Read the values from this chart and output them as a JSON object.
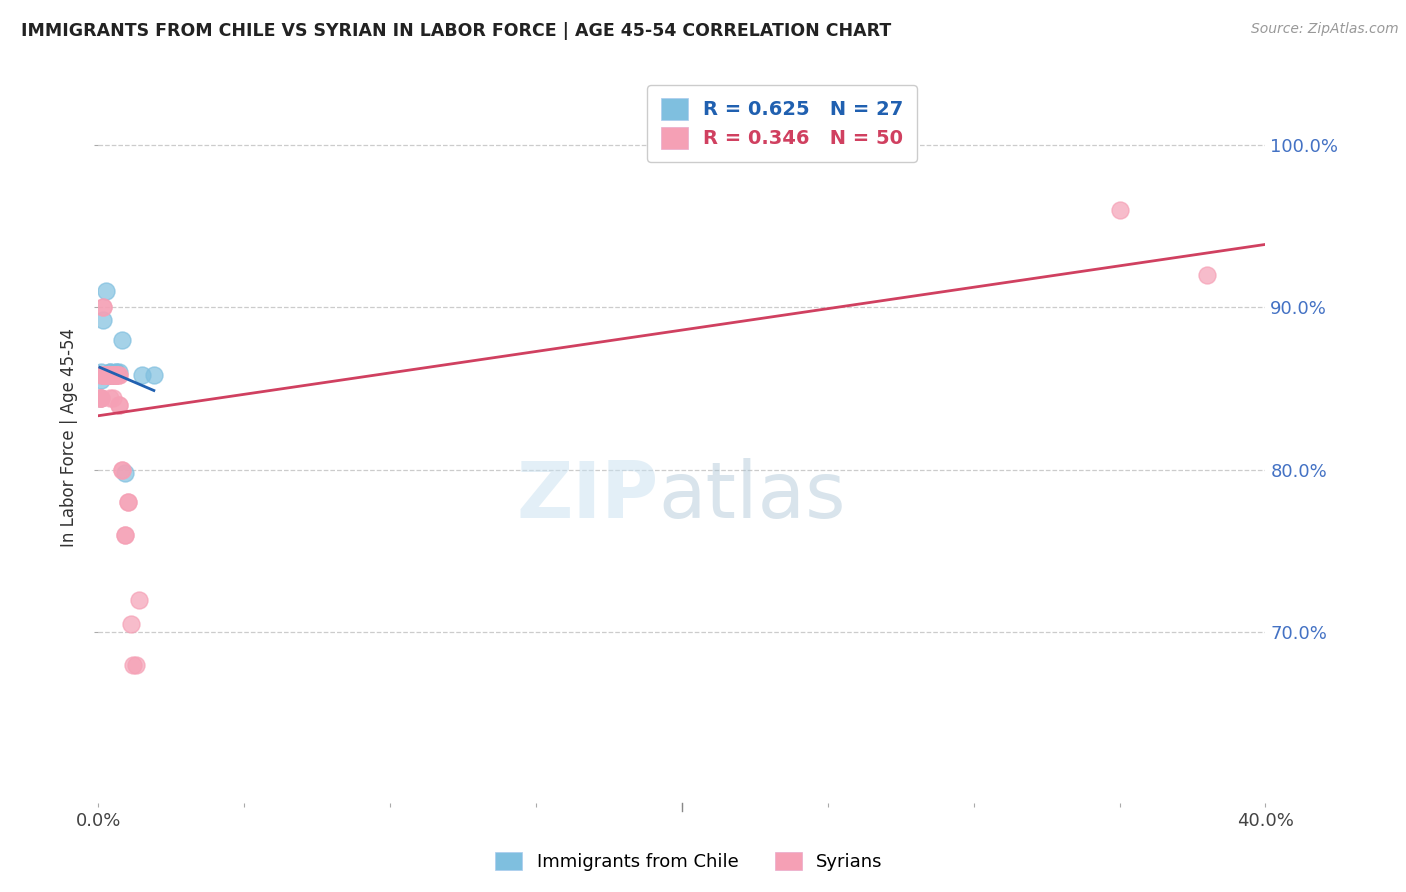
{
  "title": "IMMIGRANTS FROM CHILE VS SYRIAN IN LABOR FORCE | AGE 45-54 CORRELATION CHART",
  "source": "Source: ZipAtlas.com",
  "ylabel": "In Labor Force | Age 45-54",
  "ytick_labels": [
    "100.0%",
    "90.0%",
    "80.0%",
    "70.0%"
  ],
  "ytick_values": [
    1.0,
    0.9,
    0.8,
    0.7
  ],
  "xlim": [
    0.0,
    0.4
  ],
  "ylim": [
    0.595,
    1.045
  ],
  "chile_color": "#7fbfdf",
  "syrian_color": "#f5a0b5",
  "chile_line_color": "#2060b0",
  "syrian_line_color": "#d04060",
  "chile_R": 0.625,
  "chile_N": 27,
  "syrian_R": 0.346,
  "syrian_N": 50,
  "legend_label_chile": "Immigrants from Chile",
  "legend_label_syrian": "Syrians",
  "chile_x": [
    0.0005,
    0.001,
    0.001,
    0.0015,
    0.002,
    0.002,
    0.002,
    0.0025,
    0.003,
    0.003,
    0.003,
    0.003,
    0.0035,
    0.004,
    0.004,
    0.004,
    0.004,
    0.005,
    0.005,
    0.005,
    0.006,
    0.006,
    0.007,
    0.008,
    0.009,
    0.015,
    0.019
  ],
  "chile_y": [
    0.844,
    0.86,
    0.855,
    0.892,
    0.858,
    0.858,
    0.858,
    0.91,
    0.858,
    0.858,
    0.858,
    0.858,
    0.858,
    0.858,
    0.86,
    0.86,
    0.858,
    0.858,
    0.858,
    0.858,
    0.86,
    0.86,
    0.86,
    0.88,
    0.798,
    0.858,
    0.858
  ],
  "syrian_x": [
    0.0005,
    0.0005,
    0.001,
    0.001,
    0.001,
    0.001,
    0.0015,
    0.0015,
    0.002,
    0.002,
    0.002,
    0.002,
    0.002,
    0.002,
    0.003,
    0.003,
    0.003,
    0.003,
    0.003,
    0.003,
    0.004,
    0.004,
    0.004,
    0.004,
    0.005,
    0.005,
    0.005,
    0.005,
    0.005,
    0.006,
    0.006,
    0.006,
    0.006,
    0.006,
    0.007,
    0.007,
    0.007,
    0.007,
    0.008,
    0.008,
    0.009,
    0.009,
    0.01,
    0.01,
    0.011,
    0.012,
    0.013,
    0.014,
    0.35,
    0.38
  ],
  "syrian_y": [
    0.844,
    0.844,
    0.844,
    0.844,
    0.858,
    0.858,
    0.9,
    0.9,
    0.858,
    0.858,
    0.858,
    0.858,
    0.858,
    0.858,
    0.858,
    0.858,
    0.858,
    0.858,
    0.858,
    0.858,
    0.844,
    0.858,
    0.858,
    0.858,
    0.858,
    0.858,
    0.858,
    0.844,
    0.858,
    0.858,
    0.858,
    0.858,
    0.858,
    0.858,
    0.84,
    0.84,
    0.858,
    0.858,
    0.8,
    0.8,
    0.76,
    0.76,
    0.78,
    0.78,
    0.705,
    0.68,
    0.68,
    0.72,
    0.96,
    0.92
  ]
}
